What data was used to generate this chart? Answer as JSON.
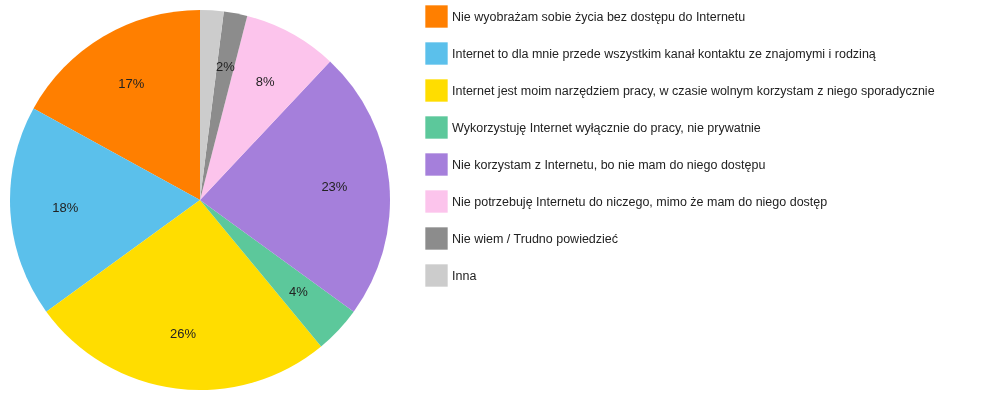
{
  "chart_data": {
    "type": "pie",
    "categories": [
      "Nie wyobrażam sobie życia bez dostępu do Internetu",
      "Internet to dla mnie przede wszystkim kanał kontaktu ze znajomymi i rodziną",
      "Internet jest moim narzędziem pracy, w czasie wolnym korzystam z niego sporadycznie",
      "Wykorzystuję Internet wyłącznie do pracy, nie prywatnie",
      "Nie korzystam z Internetu, bo nie mam do niego dostępu",
      "Nie potrzebuję Internetu do niczego, mimo że mam do niego dostęp",
      "Nie wiem / Trudno powiedzieć",
      "Inna"
    ],
    "values": [
      17,
      18,
      26,
      4,
      23,
      8,
      2,
      2
    ],
    "value_labels": [
      "17%",
      "18%",
      "26%",
      "4%",
      "23%",
      "8%",
      "2%",
      null
    ],
    "colors": [
      "#ff7f00",
      "#5bc0eb",
      "#ffdd00",
      "#5cc89b",
      "#a57fdb",
      "#fcc4ec",
      "#8c8c8c",
      "#cccccc"
    ],
    "legend": "right"
  }
}
